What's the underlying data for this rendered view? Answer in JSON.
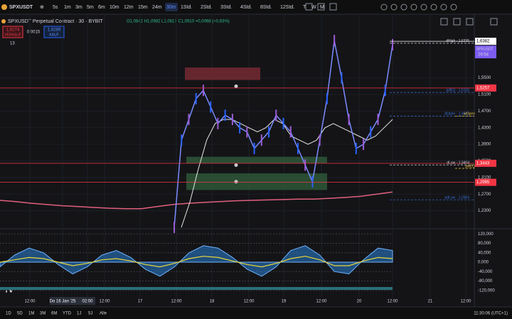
{
  "toolbar": {
    "symbol": "SPXUSDT",
    "intervals": [
      "5s",
      "1m",
      "3m",
      "5m",
      "6m",
      "10m",
      "12m",
      "15m",
      "24m",
      "30m",
      "1Std.",
      "2Std.",
      "3Std.",
      "4Std.",
      "8Std.",
      "12Std.",
      "T",
      "W",
      "M"
    ]
  },
  "legend": {
    "title": "SPXUSDT Perpetual Contract · 30 · BYBIT",
    "ohlc": "O1,0842 H1,0982 L1,0817 C1,0910 +0,0068 (+0,63%)",
    "sell_price": "1,6274",
    "sell_label": "VERKAUF",
    "spread": "0,0015",
    "buy_price": "1,6289",
    "buy_label": "KAUF",
    "indicator_count": "13"
  },
  "chart_data": [
    {
      "type": "line",
      "ylim": [
        1.19,
        1.7
      ],
      "yticks": [
        {
          "value": 1.23,
          "label": "1,2300"
        },
        {
          "value": 1.27,
          "label": "1,2700"
        },
        {
          "value": 1.31,
          "label": "1,3100"
        },
        {
          "value": 1.35,
          "label": "1,3500"
        },
        {
          "value": 1.39,
          "label": "1,3900"
        },
        {
          "value": 1.43,
          "label": "1,4300"
        },
        {
          "value": 1.47,
          "label": "1,4700"
        },
        {
          "value": 1.51,
          "label": "1,5100"
        },
        {
          "value": 1.55,
          "label": "1,5500"
        }
      ],
      "x_labels": [
        "12:00",
        "Do 16 Jan '25",
        "02:00",
        "12:00",
        "17",
        "12:00",
        "18",
        "12:00",
        "19",
        "12:00",
        "20",
        "12:00",
        "21",
        "12:00"
      ],
      "values": [
        1.19,
        1.4,
        1.45,
        1.5,
        1.52,
        1.48,
        1.44,
        1.46,
        1.45,
        1.43,
        1.42,
        1.38,
        1.4,
        1.42,
        1.46,
        1.44,
        1.42,
        1.38,
        1.34,
        1.3,
        1.4,
        1.5,
        1.64,
        1.55,
        1.45,
        1.38,
        1.39,
        1.42,
        1.45,
        1.52,
        1.63
      ],
      "color": "#7b8cff",
      "ma": {
        "color": "#e0607e",
        "values": [
          1.255,
          1.252,
          1.248,
          1.245,
          1.242,
          1.24,
          1.238,
          1.236,
          1.235,
          1.235,
          1.24,
          1.245,
          1.248,
          1.25,
          1.252,
          1.254,
          1.255,
          1.256,
          1.257,
          1.258,
          1.258,
          1.26,
          1.262,
          1.265,
          1.27,
          1.275
        ]
      },
      "ma2": {
        "color": "#e8e8e8",
        "values": [
          1.19,
          1.25,
          1.33,
          1.4,
          1.44,
          1.45,
          1.45,
          1.44,
          1.43,
          1.42,
          1.43,
          1.45,
          1.44,
          1.41,
          1.4,
          1.39,
          1.4,
          1.43,
          1.44,
          1.43,
          1.42,
          1.41,
          1.4,
          1.41,
          1.43,
          1.45
        ]
      },
      "zones": [
        {
          "low": 1.545,
          "high": 1.575,
          "color": "#7a2a35"
        },
        {
          "low": 1.345,
          "high": 1.36,
          "color": "#2e5a3a"
        },
        {
          "low": 1.28,
          "high": 1.32,
          "color": "#2e5a3a"
        }
      ],
      "price_labels": [
        {
          "value": 1.6382,
          "label": "1,6382",
          "color": "#ffffff"
        },
        {
          "value": 1.5257,
          "label": "1,5257",
          "color": "#f23645"
        },
        {
          "value": 1.3443,
          "label": "1,3443",
          "color": "#f23645"
        },
        {
          "value": 1.2985,
          "label": "1,2985",
          "color": "#f23645"
        }
      ],
      "countdown_tag": {
        "symbol": "SPXUSDT",
        "time": "29:54"
      },
      "annotations": [
        {
          "value": 1.6335,
          "label": "dHigh · 1,6335",
          "color": "#d1d4dc"
        },
        {
          "value": 1.515,
          "label": "pdEQ · 1,5150",
          "color": "#3a6fd8"
        },
        {
          "value": 1.4581,
          "label": "dOpen · 1,4581",
          "color": "#3a6fd8"
        },
        {
          "value": 1.4581,
          "label": "wOpen",
          "color": "#e8c53a"
        },
        {
          "value": 1.3404,
          "label": "dLow · 1,3404",
          "color": "#d1d4dc"
        },
        {
          "value": 1.332,
          "label": "pwEQ",
          "color": "#e8c53a"
        },
        {
          "value": 1.2564,
          "label": "pdLow · 1,2564",
          "color": "#3a6fd8"
        }
      ]
    },
    {
      "type": "area",
      "ylim": [
        -130000,
        130000
      ],
      "yticks": [
        {
          "value": 120000,
          "label": "120,000"
        },
        {
          "value": 80000,
          "label": "80,000"
        },
        {
          "value": 40000,
          "label": "40,000"
        },
        {
          "value": 0,
          "label": "0,000"
        },
        {
          "value": -40000,
          "label": "-40,000"
        },
        {
          "value": -80000,
          "label": "-80,000"
        },
        {
          "value": -120000,
          "label": "-120,000"
        }
      ],
      "color": "#2a7fd4",
      "values": [
        -20000,
        30000,
        60000,
        40000,
        -10000,
        -50000,
        -20000,
        30000,
        50000,
        20000,
        -30000,
        -60000,
        -20000,
        40000,
        70000,
        60000,
        20000,
        -30000,
        -60000,
        -20000,
        50000,
        70000,
        30000,
        -40000,
        -50000,
        10000,
        60000,
        50000
      ],
      "signal": {
        "color": "#e8d83a",
        "values": [
          0,
          10000,
          20000,
          15000,
          0,
          -15000,
          -5000,
          10000,
          15000,
          5000,
          -10000,
          -20000,
          -5000,
          15000,
          25000,
          20000,
          5000,
          -10000,
          -20000,
          -5000,
          15000,
          25000,
          10000,
          -15000,
          -15000,
          5000,
          20000,
          15000
        ]
      }
    }
  ],
  "bottom": {
    "ranges": [
      "1D",
      "5D",
      "1M",
      "3M",
      "6M",
      "YTD",
      "1J",
      "5J",
      "Alle"
    ],
    "clock": "11:30:06 (UTC+1)"
  }
}
